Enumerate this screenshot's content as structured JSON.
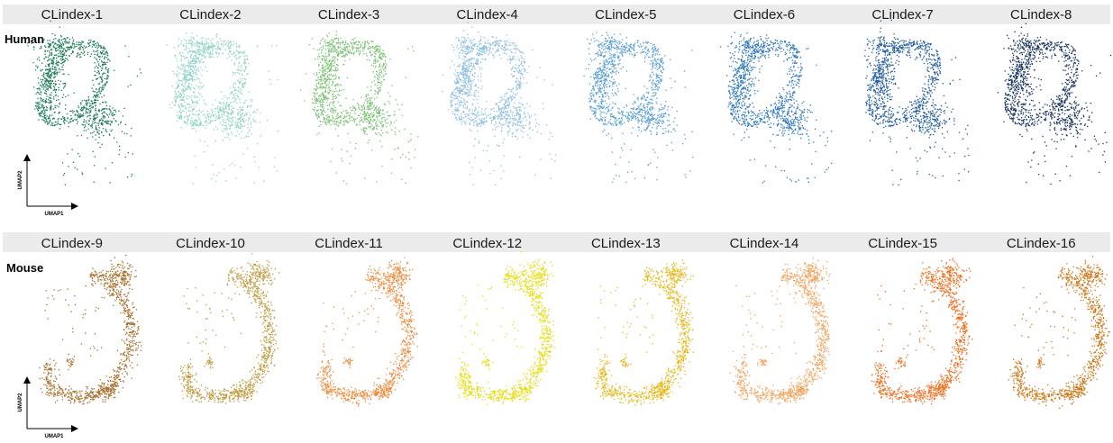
{
  "chart_data": {
    "type": "scatter",
    "rows": [
      {
        "species": "Human",
        "axis": {
          "x": "UMAP1",
          "y": "UMAP2"
        },
        "panels": [
          {
            "title": "CLindex-1",
            "color": "#1b7a55"
          },
          {
            "title": "CLindex-2",
            "color": "#8fd3c6"
          },
          {
            "title": "CLindex-3",
            "color": "#79c170"
          },
          {
            "title": "CLindex-4",
            "color": "#8dbfe1"
          },
          {
            "title": "CLindex-5",
            "color": "#5a9fd3"
          },
          {
            "title": "CLindex-6",
            "color": "#2f78bf"
          },
          {
            "title": "CLindex-7",
            "color": "#1f5aa0"
          },
          {
            "title": "CLindex-8",
            "color": "#17335f"
          }
        ]
      },
      {
        "species": "Mouse",
        "axis": {
          "x": "UMAP1",
          "y": "UMAP2"
        },
        "panels": [
          {
            "title": "CLindex-9",
            "color": "#a8702c"
          },
          {
            "title": "CLindex-10",
            "color": "#bf9a3e"
          },
          {
            "title": "CLindex-11",
            "color": "#f08a3c"
          },
          {
            "title": "CLindex-12",
            "color": "#e6dc0a"
          },
          {
            "title": "CLindex-13",
            "color": "#e8b716"
          },
          {
            "title": "CLindex-14",
            "color": "#f4a057"
          },
          {
            "title": "CLindex-15",
            "color": "#f06a17"
          },
          {
            "title": "CLindex-16",
            "color": "#cf7614"
          }
        ]
      }
    ],
    "grid": false,
    "legend": "none"
  }
}
